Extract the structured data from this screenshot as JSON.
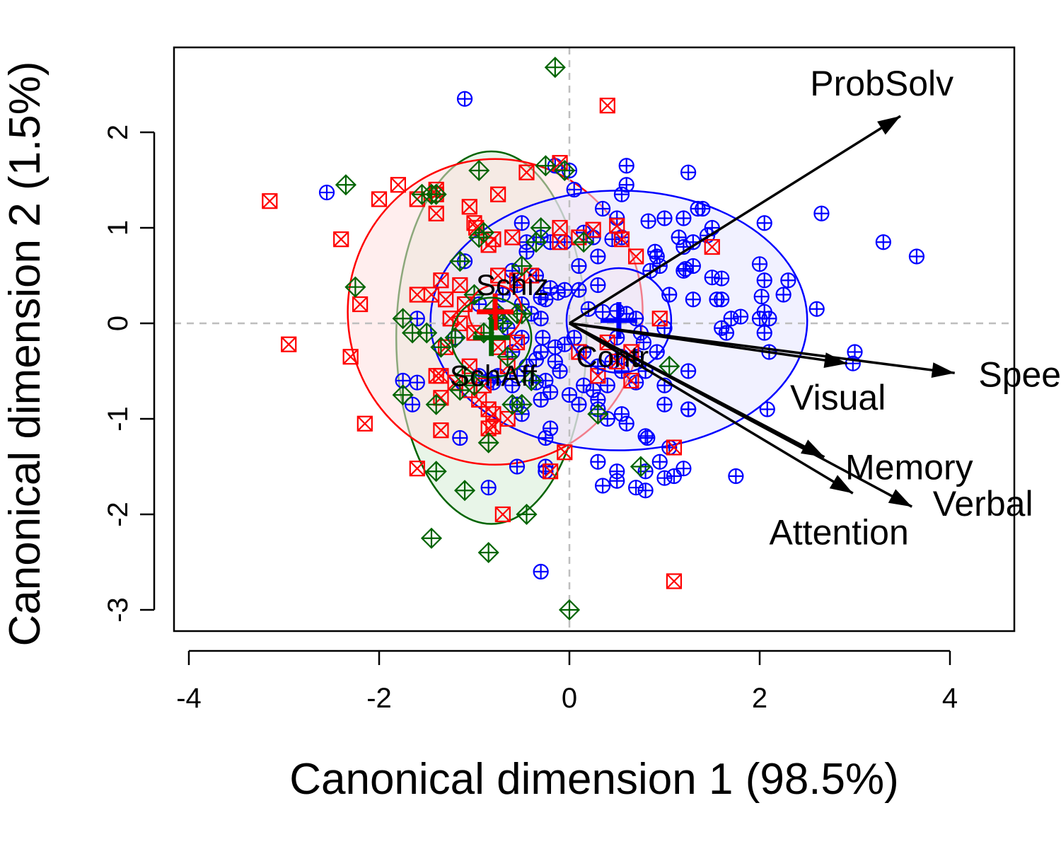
{
  "chart_data": {
    "type": "scatter",
    "title": "",
    "xlabel": "Canonical dimension 1 (98.5%)",
    "ylabel": "Canonical dimension 2 (1.5%)",
    "xlim": [
      -4.2,
      4.7
    ],
    "ylim": [
      -3.25,
      2.9
    ],
    "x_ticks": [
      "-4",
      "-2",
      "0",
      "2",
      "4"
    ],
    "x_tick_values": [
      -4,
      -2,
      0,
      2,
      4
    ],
    "y_ticks": [
      "-3",
      "-2",
      "-1",
      "0",
      "1",
      "2"
    ],
    "y_tick_values": [
      -3,
      -2,
      -1,
      0,
      1,
      2
    ],
    "reference_lines": {
      "x": 0,
      "y": 0,
      "style": "dashed",
      "color": "#bebebe"
    },
    "series": [
      {
        "name": "Contr",
        "color": "#0000FF",
        "fill": "#e6e6ff",
        "marker": "circle-plus",
        "centroid": [
          0.52,
          0.03
        ],
        "ellipse_radii": [
          1.98,
          1.36
        ],
        "centroid_circle_radius": 0.55,
        "points": [
          [
            -2.55,
            1.37
          ],
          [
            -1.1,
            2.35
          ],
          [
            -0.5,
            1.05
          ],
          [
            -0.3,
            0.9
          ],
          [
            -0.45,
            0.85
          ],
          [
            -0.2,
            0.85
          ],
          [
            -0.05,
            0.85
          ],
          [
            0.1,
            0.6
          ],
          [
            0.3,
            0.7
          ],
          [
            0.45,
            0.88
          ],
          [
            0.5,
            1.1
          ],
          [
            0.35,
            1.2
          ],
          [
            0.55,
            1.35
          ],
          [
            0.6,
            1.45
          ],
          [
            0.6,
            1.65
          ],
          [
            0.83,
            1.07
          ],
          [
            1.0,
            1.1
          ],
          [
            1.15,
            0.9
          ],
          [
            1.2,
            1.1
          ],
          [
            1.3,
            0.85
          ],
          [
            1.45,
            0.92
          ],
          [
            1.35,
            1.2
          ],
          [
            1.4,
            1.2
          ],
          [
            1.5,
            1.0
          ],
          [
            1.25,
            1.58
          ],
          [
            0.9,
            0.75
          ],
          [
            0.92,
            0.7
          ],
          [
            0.95,
            0.6
          ],
          [
            0.85,
            0.55
          ],
          [
            1.2,
            0.55
          ],
          [
            1.22,
            0.57
          ],
          [
            1.3,
            0.6
          ],
          [
            1.2,
            0.8
          ],
          [
            1.05,
            0.3
          ],
          [
            1.3,
            0.25
          ],
          [
            1.55,
            0.25
          ],
          [
            1.6,
            0.25
          ],
          [
            1.7,
            0.05
          ],
          [
            1.6,
            -0.05
          ],
          [
            1.65,
            -0.1
          ],
          [
            1.8,
            0.07
          ],
          [
            2.0,
            0.05
          ],
          [
            2.05,
            0.12
          ],
          [
            2.02,
            0.28
          ],
          [
            2.05,
            0.45
          ],
          [
            2.25,
            0.3
          ],
          [
            2.3,
            0.45
          ],
          [
            2.0,
            0.62
          ],
          [
            2.05,
            1.05
          ],
          [
            2.65,
            1.15
          ],
          [
            3.3,
            0.85
          ],
          [
            3.65,
            0.7
          ],
          [
            2.6,
            0.15
          ],
          [
            2.1,
            0.05
          ],
          [
            1.5,
            0.48
          ],
          [
            1.6,
            0.47
          ],
          [
            1.0,
            -0.05
          ],
          [
            0.92,
            -0.3
          ],
          [
            0.78,
            -0.2
          ],
          [
            0.7,
            -0.35
          ],
          [
            0.5,
            -0.15
          ],
          [
            0.45,
            -0.4
          ],
          [
            0.55,
            -0.5
          ],
          [
            0.4,
            -0.65
          ],
          [
            0.25,
            -0.7
          ],
          [
            0.15,
            -0.65
          ],
          [
            0.0,
            -0.75
          ],
          [
            -0.2,
            -0.72
          ],
          [
            -0.25,
            -0.6
          ],
          [
            -0.1,
            -0.5
          ],
          [
            -0.15,
            -0.4
          ],
          [
            -0.3,
            -0.3
          ],
          [
            -0.45,
            -0.45
          ],
          [
            -0.55,
            -0.55
          ],
          [
            -0.6,
            -0.65
          ],
          [
            -0.75,
            -0.55
          ],
          [
            -0.8,
            -0.62
          ],
          [
            -0.85,
            -0.6
          ],
          [
            -0.95,
            -0.55
          ],
          [
            -0.55,
            -0.85
          ],
          [
            -0.5,
            -0.95
          ],
          [
            -0.3,
            -0.8
          ],
          [
            -0.35,
            -0.62
          ],
          [
            -0.2,
            -1.1
          ],
          [
            -0.25,
            -1.2
          ],
          [
            -0.55,
            -1.5
          ],
          [
            -0.25,
            -1.5
          ],
          [
            -0.25,
            -1.55
          ],
          [
            -0.85,
            -1.72
          ],
          [
            -1.15,
            -1.2
          ],
          [
            -1.2,
            -0.15
          ],
          [
            -1.6,
            0.05
          ],
          [
            -1.75,
            -0.6
          ],
          [
            -1.65,
            -0.85
          ],
          [
            -1.6,
            -0.62
          ],
          [
            -0.3,
            -2.6
          ],
          [
            0.3,
            -1.45
          ],
          [
            0.5,
            -1.55
          ],
          [
            0.35,
            -1.7
          ],
          [
            0.5,
            -1.65
          ],
          [
            0.7,
            -1.72
          ],
          [
            0.8,
            -1.55
          ],
          [
            0.8,
            -1.75
          ],
          [
            0.95,
            -1.45
          ],
          [
            1.0,
            -1.62
          ],
          [
            1.1,
            -1.6
          ],
          [
            1.2,
            -1.52
          ],
          [
            1.05,
            -1.3
          ],
          [
            0.82,
            -1.2
          ],
          [
            0.8,
            -1.18
          ],
          [
            0.6,
            -1.05
          ],
          [
            0.4,
            -1.0
          ],
          [
            0.3,
            -0.9
          ],
          [
            1.0,
            -0.85
          ],
          [
            1.25,
            -0.9
          ],
          [
            1.25,
            -0.5
          ],
          [
            1.0,
            -0.65
          ],
          [
            0.8,
            -0.5
          ],
          [
            0.7,
            -0.62
          ],
          [
            1.25,
            -0.9
          ],
          [
            2.08,
            -0.9
          ],
          [
            1.75,
            -1.6
          ],
          [
            3.0,
            -0.3
          ],
          [
            2.98,
            -0.42
          ],
          [
            2.05,
            -0.1
          ],
          [
            2.1,
            -0.3
          ],
          [
            0.0,
            1.6
          ],
          [
            0.05,
            1.4
          ],
          [
            -0.15,
            1.65
          ],
          [
            0.15,
            0.95
          ],
          [
            0.25,
            0.9
          ],
          [
            0.55,
            0.9
          ],
          [
            0.3,
            0.4
          ],
          [
            0.1,
            0.35
          ],
          [
            -0.05,
            0.35
          ],
          [
            -0.12,
            0.32
          ],
          [
            -0.2,
            0.37
          ],
          [
            -0.3,
            0.27
          ],
          [
            -0.5,
            0.2
          ],
          [
            -0.7,
            0.3
          ],
          [
            -0.75,
            0.1
          ],
          [
            -0.95,
            0.2
          ],
          [
            -1.1,
            0.65
          ],
          [
            -0.45,
            0.75
          ],
          [
            -0.35,
            0.5
          ],
          [
            -0.55,
            0.4
          ],
          [
            -0.6,
            0.55
          ],
          [
            -0.25,
            0.25
          ],
          [
            0.2,
            0.15
          ],
          [
            0.35,
            0.12
          ],
          [
            0.5,
            0.13
          ],
          [
            0.6,
            0.1
          ],
          [
            0.7,
            0.05
          ],
          [
            0.75,
            -0.1
          ],
          [
            0.55,
            -0.35
          ],
          [
            0.3,
            -0.45
          ],
          [
            0.15,
            -0.3
          ],
          [
            0.05,
            -0.15
          ],
          [
            -0.05,
            -0.22
          ],
          [
            -0.15,
            -0.25
          ],
          [
            -0.28,
            -0.15
          ],
          [
            -0.3,
            0.05
          ],
          [
            -0.4,
            0.1
          ],
          [
            -0.5,
            -0.15
          ],
          [
            -0.65,
            -0.05
          ],
          [
            -0.6,
            -0.3
          ],
          [
            -0.35,
            -0.38
          ],
          [
            0.55,
            -0.95
          ],
          [
            0.1,
            -0.85
          ],
          [
            0.3,
            -0.8
          ]
        ]
      },
      {
        "name": "Schiz",
        "color": "#FF0000",
        "fill": "#ffe0e0",
        "marker": "square-x",
        "centroid": [
          -0.78,
          0.12
        ],
        "ellipse_radii": [
          1.55,
          1.6
        ],
        "centroid_circle_radius": 0.28,
        "points": [
          [
            -3.15,
            1.28
          ],
          [
            -2.95,
            -0.22
          ],
          [
            -2.4,
            0.88
          ],
          [
            -2.3,
            -0.35
          ],
          [
            -2.2,
            0.2
          ],
          [
            -2.15,
            -1.05
          ],
          [
            -2.0,
            1.3
          ],
          [
            -1.8,
            1.45
          ],
          [
            -1.6,
            1.3
          ],
          [
            -1.4,
            1.4
          ],
          [
            -1.4,
            1.35
          ],
          [
            -1.4,
            1.15
          ],
          [
            -1.6,
            0.3
          ],
          [
            -1.45,
            0.3
          ],
          [
            -1.35,
            0.45
          ],
          [
            -1.3,
            0.25
          ],
          [
            -1.25,
            0.05
          ],
          [
            -1.15,
            0.0
          ],
          [
            -1.3,
            -0.25
          ],
          [
            -1.35,
            -0.55
          ],
          [
            -1.4,
            -0.55
          ],
          [
            -1.35,
            -0.78
          ],
          [
            -1.2,
            -0.62
          ],
          [
            -1.05,
            -0.7
          ],
          [
            -0.95,
            -0.8
          ],
          [
            -0.85,
            -0.9
          ],
          [
            -0.8,
            -0.95
          ],
          [
            -0.65,
            -1.0
          ],
          [
            -0.85,
            -1.1
          ],
          [
            -0.8,
            -1.08
          ],
          [
            -1.35,
            -1.12
          ],
          [
            -1.6,
            -1.52
          ],
          [
            -0.7,
            -2.0
          ],
          [
            -0.2,
            -1.55
          ],
          [
            -0.05,
            -1.35
          ],
          [
            0.1,
            -0.3
          ],
          [
            0.3,
            -0.55
          ],
          [
            0.4,
            -0.2
          ],
          [
            0.5,
            -0.4
          ],
          [
            0.65,
            -0.3
          ],
          [
            0.95,
            0.05
          ],
          [
            0.7,
            0.7
          ],
          [
            0.55,
            0.88
          ],
          [
            0.25,
            0.98
          ],
          [
            0.5,
            1.02
          ],
          [
            0.1,
            0.9
          ],
          [
            -0.1,
            1.0
          ],
          [
            -0.1,
            0.85
          ],
          [
            -0.4,
            0.5
          ],
          [
            -0.55,
            0.45
          ],
          [
            -0.75,
            0.5
          ],
          [
            -0.6,
            0.9
          ],
          [
            -0.8,
            0.88
          ],
          [
            -0.85,
            0.82
          ],
          [
            -1.0,
            1.05
          ],
          [
            -1.05,
            1.22
          ],
          [
            -0.98,
            1.0
          ],
          [
            -0.75,
            1.35
          ],
          [
            -0.45,
            1.58
          ],
          [
            -0.1,
            1.68
          ],
          [
            -0.65,
            -0.45
          ],
          [
            -0.55,
            -0.2
          ],
          [
            -0.75,
            -0.25
          ],
          [
            -1.0,
            -0.1
          ],
          [
            -1.1,
            0.2
          ],
          [
            -1.15,
            0.4
          ],
          [
            -1.25,
            0.05
          ],
          [
            -1.05,
            -0.45
          ],
          [
            -0.9,
            -0.65
          ],
          [
            0.4,
            2.28
          ],
          [
            1.1,
            -2.7
          ],
          [
            1.1,
            -1.3
          ],
          [
            1.5,
            0.8
          ],
          [
            0.65,
            -0.6
          ]
        ]
      },
      {
        "name": "SchAff",
        "color": "#006400",
        "fill": "#d6ecd6",
        "marker": "diamond-plus",
        "centroid": [
          -0.82,
          -0.15
        ],
        "ellipse_radii": [
          1.0,
          1.95
        ],
        "centroid_circle_radius": 0.42,
        "points": [
          [
            -0.15,
            2.68
          ],
          [
            -2.35,
            1.45
          ],
          [
            -2.25,
            0.38
          ],
          [
            -1.55,
            1.35
          ],
          [
            -1.45,
            1.35
          ],
          [
            -1.4,
            1.35
          ],
          [
            -0.95,
            1.6
          ],
          [
            -0.25,
            1.65
          ],
          [
            -0.05,
            1.6
          ],
          [
            -0.95,
            0.9
          ],
          [
            -0.9,
            0.95
          ],
          [
            -1.15,
            0.65
          ],
          [
            -1.0,
            0.3
          ],
          [
            -0.8,
            0.15
          ],
          [
            -0.75,
            0.05
          ],
          [
            -0.5,
            0.1
          ],
          [
            -0.55,
            0.1
          ],
          [
            -0.7,
            0.0
          ],
          [
            -0.9,
            -0.1
          ],
          [
            -1.2,
            -0.15
          ],
          [
            -1.35,
            -0.25
          ],
          [
            -1.5,
            -0.1
          ],
          [
            -1.65,
            -0.1
          ],
          [
            -1.75,
            0.05
          ],
          [
            -1.1,
            -0.55
          ],
          [
            -1.0,
            -0.65
          ],
          [
            -1.15,
            -0.7
          ],
          [
            -1.4,
            -0.85
          ],
          [
            -1.75,
            -0.75
          ],
          [
            -1.4,
            -1.55
          ],
          [
            -1.1,
            -1.75
          ],
          [
            -0.85,
            -1.25
          ],
          [
            -0.45,
            -2.0
          ],
          [
            -0.6,
            -0.85
          ],
          [
            -0.4,
            -0.6
          ],
          [
            -1.45,
            -2.25
          ],
          [
            -0.85,
            -2.4
          ],
          [
            0.0,
            -3.0
          ],
          [
            0.3,
            -0.95
          ],
          [
            0.75,
            -1.5
          ],
          [
            1.05,
            -0.45
          ],
          [
            0.15,
            0.85
          ],
          [
            -0.3,
            1.0
          ],
          [
            -0.35,
            0.85
          ],
          [
            -0.5,
            0.6
          ],
          [
            -0.65,
            -0.35
          ],
          [
            -0.5,
            -0.85
          ]
        ]
      }
    ],
    "vectors": [
      {
        "name": "ProbSolv",
        "x": 3.48,
        "y": 2.17
      },
      {
        "name": "Speed",
        "x": 4.05,
        "y": -0.52
      },
      {
        "name": "Visual",
        "x": 2.92,
        "y": -0.42
      },
      {
        "name": "Memory",
        "x": 2.68,
        "y": -1.4
      },
      {
        "name": "Verbal",
        "x": 3.6,
        "y": -1.92
      },
      {
        "name": "Attention",
        "x": 2.98,
        "y": -1.78
      }
    ]
  }
}
